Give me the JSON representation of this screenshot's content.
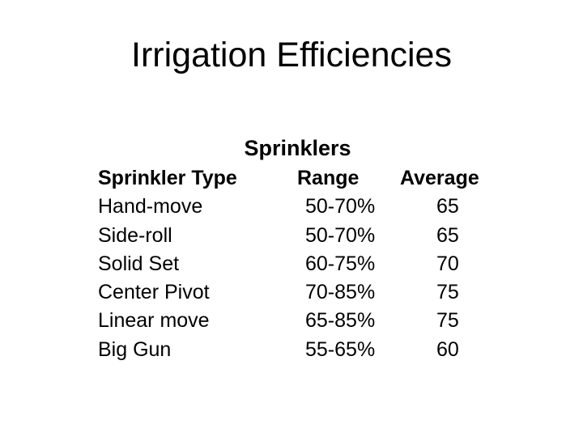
{
  "slide": {
    "title": "Irrigation Efficiencies"
  },
  "table": {
    "heading": "Sprinklers",
    "headers": {
      "type": "Sprinkler Type",
      "range": "Range",
      "average": "Average"
    },
    "rows": [
      {
        "type": "Hand-move",
        "range": "50-70%",
        "average": "65"
      },
      {
        "type": "Side-roll",
        "range": "50-70%",
        "average": "65"
      },
      {
        "type": "Solid Set",
        "range": "60-75%",
        "average": "70"
      },
      {
        "type": "Center Pivot",
        "range": "70-85%",
        "average": "75"
      },
      {
        "type": "Linear move",
        "range": "65-85%",
        "average": "75"
      },
      {
        "type": "Big Gun",
        "range": "55-65%",
        "average": "60"
      }
    ]
  }
}
